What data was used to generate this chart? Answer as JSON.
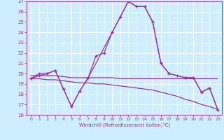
{
  "xlabel": "Windchill (Refroidissement éolien,°C)",
  "bg_color": "#cceeff",
  "grid_color": "#ffffff",
  "line_color": "#993399",
  "xlim": [
    -0.5,
    23.5
  ],
  "ylim": [
    16,
    27
  ],
  "xticks": [
    0,
    1,
    2,
    3,
    4,
    5,
    6,
    7,
    8,
    9,
    10,
    11,
    12,
    13,
    14,
    15,
    16,
    17,
    18,
    19,
    20,
    21,
    22,
    23
  ],
  "yticks": [
    16,
    17,
    18,
    19,
    20,
    21,
    22,
    23,
    24,
    25,
    26,
    27
  ],
  "series1_x": [
    0,
    1,
    2,
    3,
    4,
    5,
    6,
    7,
    10,
    11,
    12,
    13,
    14,
    15,
    16,
    17,
    19,
    20,
    21,
    22,
    23
  ],
  "series1_y": [
    19.5,
    20.0,
    20.0,
    20.3,
    18.5,
    16.8,
    18.3,
    19.5,
    24.0,
    25.5,
    27.0,
    26.5,
    26.5,
    25.0,
    21.0,
    20.0,
    19.6,
    19.6,
    18.2,
    18.6,
    16.5
  ],
  "series2_x": [
    0,
    1,
    2,
    3,
    4,
    5,
    6,
    7,
    8,
    9,
    10,
    11,
    12,
    13,
    14,
    15,
    16,
    17,
    18,
    19,
    20,
    21,
    22,
    23
  ],
  "series2_y": [
    19.8,
    19.8,
    19.8,
    19.8,
    19.7,
    19.6,
    19.6,
    19.6,
    19.6,
    19.6,
    19.6,
    19.5,
    19.5,
    19.5,
    19.5,
    19.5,
    19.5,
    19.5,
    19.5,
    19.5,
    19.5,
    19.5,
    19.5,
    19.5
  ],
  "series3_x": [
    0,
    1,
    2,
    3,
    4,
    5,
    6,
    7,
    8,
    9,
    10,
    11,
    12,
    13,
    14,
    15,
    16,
    17,
    18,
    19,
    20,
    21,
    22,
    23
  ],
  "series3_y": [
    19.5,
    19.5,
    19.4,
    19.4,
    19.3,
    19.2,
    19.1,
    19.1,
    19.0,
    19.0,
    18.9,
    18.8,
    18.7,
    18.6,
    18.5,
    18.4,
    18.2,
    18.0,
    17.8,
    17.5,
    17.3,
    17.0,
    16.8,
    16.5
  ],
  "series4_x": [
    0,
    1,
    2,
    3,
    4,
    5,
    6,
    7,
    8,
    9,
    10,
    11,
    12,
    13,
    14,
    15,
    16,
    17,
    18,
    19,
    20,
    21,
    22,
    23
  ],
  "series4_y": [
    19.5,
    19.8,
    20.0,
    20.3,
    18.5,
    16.8,
    18.3,
    19.5,
    21.7,
    22.0,
    24.0,
    25.5,
    27.0,
    26.5,
    26.5,
    25.0,
    21.0,
    20.0,
    19.8,
    19.6,
    19.6,
    18.2,
    18.6,
    16.5
  ]
}
